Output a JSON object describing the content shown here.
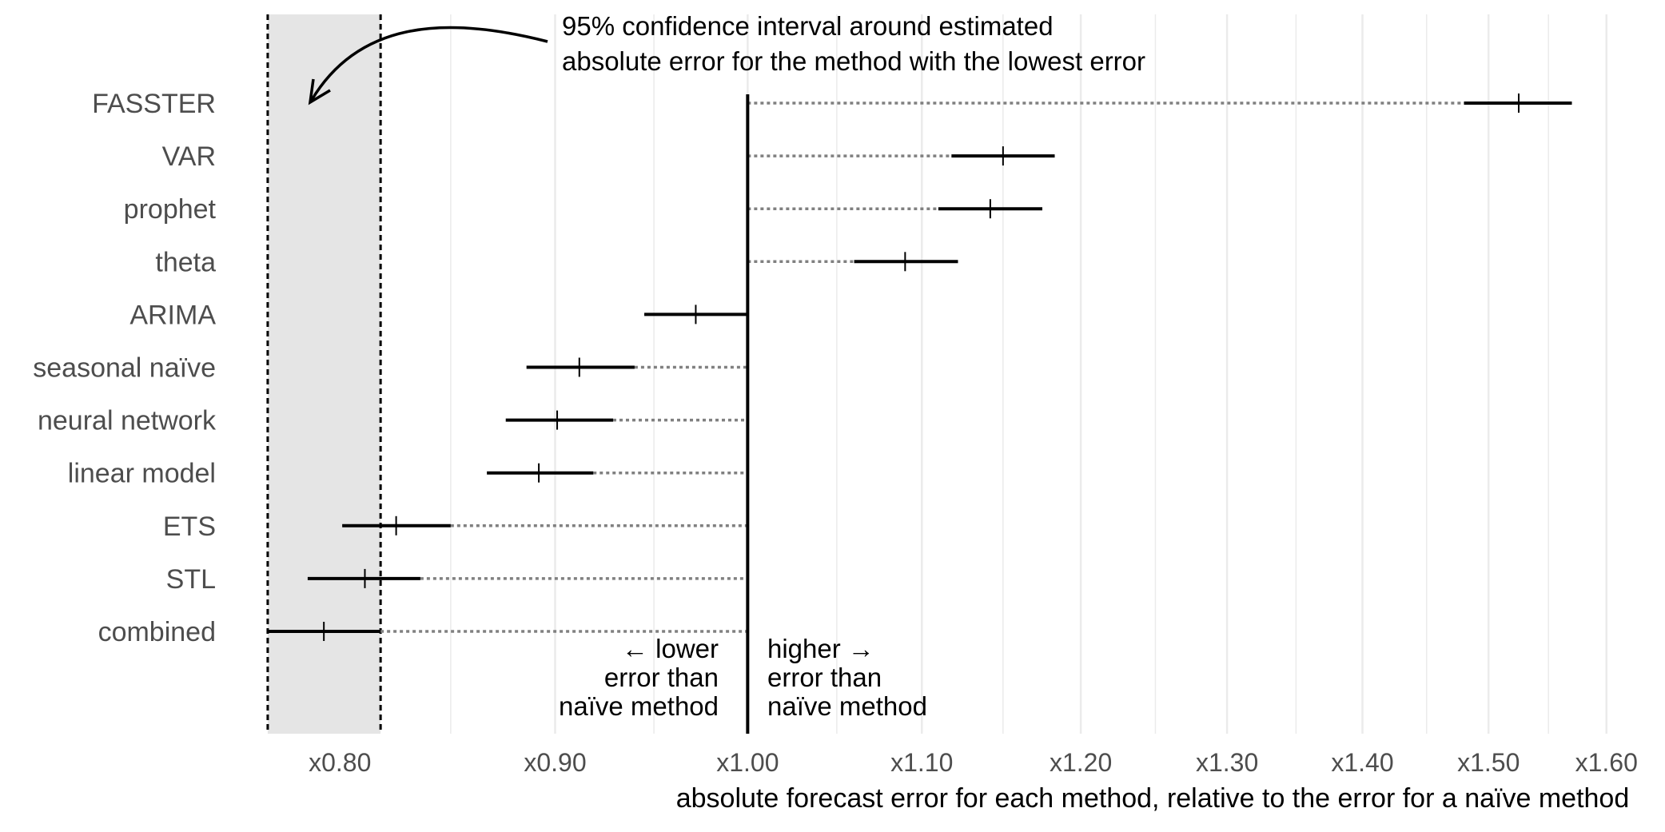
{
  "chart_data": {
    "type": "interval-dot",
    "title": "",
    "xlabel": "absolute forecast error for each method, relative to the error for a naïve method",
    "x_scale": "log",
    "xlim": [
      0.765,
      1.61
    ],
    "x_ticks": [
      {
        "value": 0.8,
        "label": "x0.80"
      },
      {
        "value": 0.9,
        "label": "x0.90"
      },
      {
        "value": 1.0,
        "label": "x1.00"
      },
      {
        "value": 1.1,
        "label": "x1.10"
      },
      {
        "value": 1.2,
        "label": "x1.20"
      },
      {
        "value": 1.3,
        "label": "x1.30"
      },
      {
        "value": 1.4,
        "label": "x1.40"
      },
      {
        "value": 1.5,
        "label": "x1.50"
      },
      {
        "value": 1.6,
        "label": "x1.60"
      }
    ],
    "reference_value": 1.0,
    "grid": true,
    "methods": [
      {
        "name": "FASSTER",
        "estimate": 1.525,
        "lower": 1.48,
        "upper": 1.57
      },
      {
        "name": "VAR",
        "estimate": 1.15,
        "lower": 1.118,
        "upper": 1.183
      },
      {
        "name": "prophet",
        "estimate": 1.142,
        "lower": 1.11,
        "upper": 1.175
      },
      {
        "name": "theta",
        "estimate": 1.09,
        "lower": 1.06,
        "upper": 1.122
      },
      {
        "name": "ARIMA",
        "estimate": 0.972,
        "lower": 0.945,
        "upper": 1.0
      },
      {
        "name": "seasonal naïve",
        "estimate": 0.912,
        "lower": 0.886,
        "upper": 0.94
      },
      {
        "name": "neural network",
        "estimate": 0.901,
        "lower": 0.876,
        "upper": 0.929
      },
      {
        "name": "linear model",
        "estimate": 0.892,
        "lower": 0.867,
        "upper": 0.919
      },
      {
        "name": "ETS",
        "estimate": 0.825,
        "lower": 0.801,
        "upper": 0.85
      },
      {
        "name": "STL",
        "estimate": 0.811,
        "lower": 0.786,
        "upper": 0.836
      },
      {
        "name": "combined",
        "estimate": 0.793,
        "lower": 0.769,
        "upper": 0.818
      }
    ],
    "shaded_band": {
      "lower": 0.769,
      "upper": 0.818
    },
    "annotations": {
      "band_note": [
        "95% confidence interval around estimated",
        "absolute error for the method with the lowest error"
      ],
      "lower_note": [
        "← lower",
        "error than",
        "naïve method"
      ],
      "higher_note": [
        "higher →",
        "error than",
        "naïve method"
      ]
    }
  },
  "colors": {
    "background": "#ffffff",
    "grid": "#ebebeb",
    "band_fill": "#e5e5e5",
    "interval": "#000000",
    "connector": "#808080",
    "axis_text": "#4d4d4d",
    "text": "#000000"
  }
}
